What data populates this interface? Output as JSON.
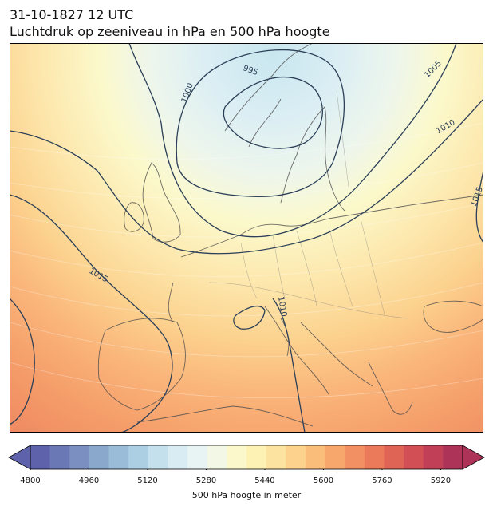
{
  "title": {
    "line1": "31-10-1827 12 UTC",
    "line2": "Luchtdruk op zeeniveau in hPa en 500 hPa hoogte"
  },
  "isobars": {
    "unit": "hPa",
    "labels": [
      "995",
      "1000",
      "1005",
      "1010",
      "1010",
      "1015",
      "1015",
      "1010"
    ]
  },
  "colorbar": {
    "label": "500 hPa hoogte in meter",
    "min": 4800,
    "max": 5980,
    "ticks": [
      "4800",
      "4960",
      "5120",
      "5280",
      "5440",
      "5600",
      "5760",
      "5920"
    ],
    "colors": [
      "#5e62ab",
      "#6a78b5",
      "#7b90c0",
      "#8aa7cc",
      "#9bbcd9",
      "#adcfe4",
      "#c3e0ec",
      "#d9ecf3",
      "#e8f4f4",
      "#f3f8e6",
      "#fbf9cc",
      "#fef1b4",
      "#fde3a0",
      "#fcd28c",
      "#fbbd7a",
      "#f8a76c",
      "#f39063",
      "#eb7a5b",
      "#e06456",
      "#d25055",
      "#c13f57",
      "#ad3458"
    ]
  }
}
